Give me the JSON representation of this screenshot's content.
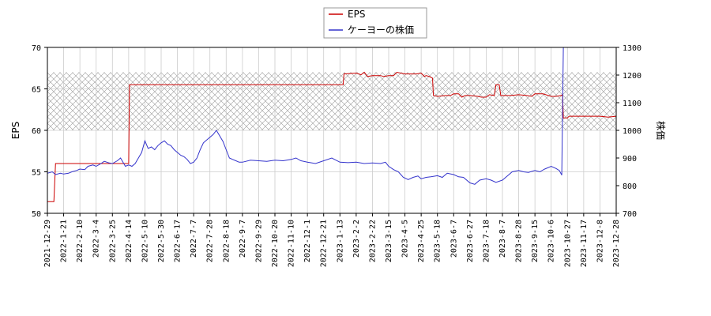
{
  "chart_data": {
    "type": "line",
    "title": "",
    "legend": {
      "placement": "top-center",
      "entries": [
        {
          "label": "EPS",
          "color": "#cc0000"
        },
        {
          "label": "ケーヨーの株価",
          "color": "#3333cc"
        }
      ]
    },
    "x_axis": {
      "ticks": [
        "2021-12-29",
        "2022-1-21",
        "2022-2-10",
        "2022-3-4",
        "2022-3-25",
        "2022-4-14",
        "2022-5-10",
        "2022-5-30",
        "2022-6-17",
        "2022-7-7",
        "2022-7-28",
        "2022-8-18",
        "2022-9-7",
        "2022-9-29",
        "2022-10-20",
        "2022-11-10",
        "2022-12-1",
        "2022-12-21",
        "2023-1-13",
        "2023-2-2",
        "2023-2-22",
        "2023-3-15",
        "2023-4-5",
        "2023-4-25",
        "2023-5-18",
        "2023-6-7",
        "2023-6-27",
        "2023-7-18",
        "2023-8-7",
        "2023-8-28",
        "2023-9-15",
        "2023-10-6",
        "2023-10-27",
        "2023-11-17",
        "2023-12-8",
        "2023-12-28"
      ]
    },
    "y_left": {
      "label": "EPS",
      "range": [
        50,
        70
      ],
      "ticks": [
        "50",
        "55",
        "60",
        "65",
        "70"
      ]
    },
    "y_right": {
      "label": "株価",
      "range": [
        700,
        1300
      ],
      "ticks": [
        "700",
        "800",
        "900",
        "1000",
        "1100",
        "1200",
        "1300"
      ]
    },
    "grid": true,
    "hatched_band": {
      "axis": "left",
      "from": 60,
      "to": 67
    },
    "series": [
      {
        "name": "EPS",
        "axis": "left",
        "color": "#cc0000",
        "points": [
          [
            0,
            51.4
          ],
          [
            0.4,
            51.4
          ],
          [
            0.5,
            56
          ],
          [
            5.0,
            56
          ],
          [
            5.05,
            65.5
          ],
          [
            18.2,
            65.5
          ],
          [
            18.25,
            66.8
          ],
          [
            19.0,
            66.9
          ],
          [
            19.3,
            66.7
          ],
          [
            19.5,
            67.0
          ],
          [
            19.7,
            66.5
          ],
          [
            20.0,
            66.6
          ],
          [
            20.5,
            66.6
          ],
          [
            20.7,
            66.5
          ],
          [
            21.0,
            66.6
          ],
          [
            21.3,
            66.6
          ],
          [
            21.5,
            67.0
          ],
          [
            22.0,
            66.8
          ],
          [
            22.5,
            66.8
          ],
          [
            22.7,
            66.8
          ],
          [
            23.0,
            66.9
          ],
          [
            23.2,
            66.5
          ],
          [
            23.3,
            66.6
          ],
          [
            23.5,
            66.5
          ],
          [
            23.7,
            66.3
          ],
          [
            23.75,
            64.2
          ],
          [
            24.0,
            64.1
          ],
          [
            24.5,
            64.2
          ],
          [
            24.8,
            64.2
          ],
          [
            25.0,
            64.4
          ],
          [
            25.3,
            64.4
          ],
          [
            25.5,
            64.0
          ],
          [
            25.7,
            64.2
          ],
          [
            26.0,
            64.2
          ],
          [
            26.5,
            64.1
          ],
          [
            26.7,
            64.0
          ],
          [
            27.0,
            64.0
          ],
          [
            27.2,
            64.3
          ],
          [
            27.5,
            64.2
          ],
          [
            27.6,
            65.5
          ],
          [
            27.8,
            65.5
          ],
          [
            27.9,
            64.2
          ],
          [
            28.2,
            64.2
          ],
          [
            28.5,
            64.2
          ],
          [
            29.0,
            64.3
          ],
          [
            29.5,
            64.2
          ],
          [
            29.8,
            64.1
          ],
          [
            30.0,
            64.4
          ],
          [
            30.5,
            64.4
          ],
          [
            31.0,
            64.1
          ],
          [
            31.3,
            64.1
          ],
          [
            31.6,
            64.2
          ],
          [
            31.7,
            64.3
          ],
          [
            31.75,
            61.5
          ],
          [
            32.0,
            61.5
          ],
          [
            32.1,
            61.7
          ],
          [
            33.0,
            61.7
          ],
          [
            34.0,
            61.7
          ],
          [
            34.5,
            61.6
          ],
          [
            35.0,
            61.7
          ]
        ]
      },
      {
        "name": "ケーヨーの株価",
        "axis": "right",
        "color": "#3333cc",
        "points": [
          [
            0,
            845
          ],
          [
            0.3,
            850
          ],
          [
            0.5,
            840
          ],
          [
            0.8,
            845
          ],
          [
            1.0,
            842
          ],
          [
            1.3,
            845
          ],
          [
            1.5,
            850
          ],
          [
            1.8,
            855
          ],
          [
            2.0,
            860
          ],
          [
            2.3,
            858
          ],
          [
            2.5,
            870
          ],
          [
            2.8,
            875
          ],
          [
            3.0,
            870
          ],
          [
            3.3,
            880
          ],
          [
            3.5,
            888
          ],
          [
            3.8,
            882
          ],
          [
            4.0,
            880
          ],
          [
            4.3,
            890
          ],
          [
            4.5,
            900
          ],
          [
            4.8,
            870
          ],
          [
            5.0,
            875
          ],
          [
            5.2,
            870
          ],
          [
            5.4,
            880
          ],
          [
            5.6,
            900
          ],
          [
            5.8,
            920
          ],
          [
            6.0,
            962
          ],
          [
            6.2,
            935
          ],
          [
            6.4,
            940
          ],
          [
            6.6,
            930
          ],
          [
            6.8,
            945
          ],
          [
            7.0,
            955
          ],
          [
            7.2,
            962
          ],
          [
            7.4,
            950
          ],
          [
            7.6,
            945
          ],
          [
            7.8,
            930
          ],
          [
            8.0,
            920
          ],
          [
            8.2,
            910
          ],
          [
            8.4,
            905
          ],
          [
            8.6,
            895
          ],
          [
            8.8,
            880
          ],
          [
            9.0,
            885
          ],
          [
            9.2,
            900
          ],
          [
            9.4,
            930
          ],
          [
            9.6,
            955
          ],
          [
            9.8,
            965
          ],
          [
            10.0,
            975
          ],
          [
            10.2,
            985
          ],
          [
            10.4,
            1000
          ],
          [
            10.6,
            980
          ],
          [
            10.8,
            960
          ],
          [
            11.0,
            930
          ],
          [
            11.2,
            900
          ],
          [
            11.4,
            895
          ],
          [
            11.6,
            890
          ],
          [
            11.8,
            885
          ],
          [
            12.0,
            885
          ],
          [
            12.5,
            892
          ],
          [
            13.0,
            890
          ],
          [
            13.5,
            888
          ],
          [
            14.0,
            892
          ],
          [
            14.5,
            890
          ],
          [
            15.0,
            895
          ],
          [
            15.3,
            900
          ],
          [
            15.6,
            890
          ],
          [
            16.0,
            885
          ],
          [
            16.5,
            880
          ],
          [
            17.0,
            890
          ],
          [
            17.5,
            900
          ],
          [
            18.0,
            885
          ],
          [
            18.5,
            883
          ],
          [
            19.0,
            885
          ],
          [
            19.5,
            880
          ],
          [
            20.0,
            882
          ],
          [
            20.5,
            880
          ],
          [
            20.8,
            885
          ],
          [
            21.0,
            870
          ],
          [
            21.3,
            858
          ],
          [
            21.6,
            850
          ],
          [
            21.9,
            830
          ],
          [
            22.2,
            822
          ],
          [
            22.5,
            830
          ],
          [
            22.8,
            835
          ],
          [
            23.0,
            825
          ],
          [
            23.3,
            830
          ],
          [
            23.6,
            832
          ],
          [
            24.0,
            836
          ],
          [
            24.3,
            830
          ],
          [
            24.6,
            845
          ],
          [
            25.0,
            840
          ],
          [
            25.3,
            832
          ],
          [
            25.6,
            830
          ],
          [
            26.0,
            810
          ],
          [
            26.3,
            805
          ],
          [
            26.6,
            820
          ],
          [
            27.0,
            825
          ],
          [
            27.3,
            820
          ],
          [
            27.6,
            812
          ],
          [
            28.0,
            820
          ],
          [
            28.3,
            835
          ],
          [
            28.6,
            850
          ],
          [
            29.0,
            855
          ],
          [
            29.3,
            850
          ],
          [
            29.6,
            848
          ],
          [
            30.0,
            855
          ],
          [
            30.3,
            850
          ],
          [
            30.6,
            860
          ],
          [
            31.0,
            870
          ],
          [
            31.3,
            862
          ],
          [
            31.5,
            855
          ],
          [
            31.65,
            838
          ],
          [
            31.75,
            1300
          ],
          [
            32.0,
            1300
          ],
          [
            33.0,
            1300
          ],
          [
            34.0,
            1300
          ],
          [
            35.0,
            1300
          ]
        ]
      }
    ]
  }
}
